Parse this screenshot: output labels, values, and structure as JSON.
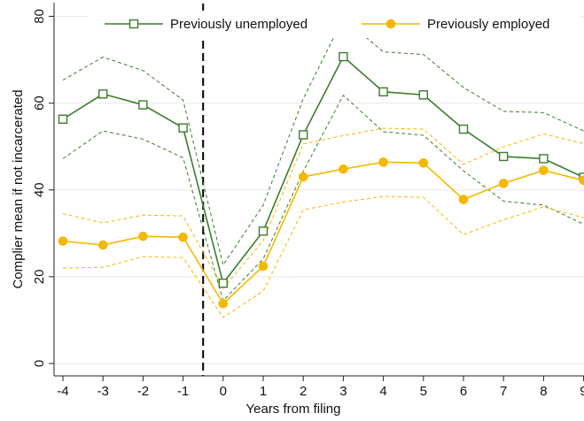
{
  "chart_data": {
    "type": "line",
    "xlabel": "Years from filing",
    "ylabel": "Complier mean if not incarcerated",
    "x_ticks": [
      "-4",
      "-3",
      "-2",
      "-1",
      "0",
      "1",
      "2",
      "3",
      "4",
      "5",
      "6",
      "7",
      "8",
      "9"
    ],
    "y_ticks": [
      "0",
      "20",
      "40",
      "60",
      "80"
    ],
    "xlim": [
      -4.25,
      9
    ],
    "ylim": [
      -1.5,
      82
    ],
    "grid": "horizontal",
    "legend_position": "top",
    "reference_line_x": -0.5,
    "x": [
      -4,
      -3,
      -2,
      -1,
      0,
      1,
      2,
      3,
      4,
      5,
      6,
      7,
      8,
      9
    ],
    "series": [
      {
        "name": "Previously unemployed",
        "color": "#3a7d2c",
        "marker": "hollow-square",
        "values": [
          56.3,
          62.1,
          59.6,
          54.3,
          18.5,
          30.5,
          52.7,
          70.7,
          62.6,
          61.9,
          54.0,
          47.7,
          47.2,
          42.9
        ],
        "ci_upper": [
          65.3,
          70.6,
          67.5,
          60.7,
          22.7,
          36.5,
          61.0,
          79.6,
          71.8,
          71.2,
          63.6,
          58.1,
          57.8,
          53.6
        ],
        "ci_lower": [
          47.2,
          53.6,
          51.7,
          47.4,
          14.5,
          24.1,
          44.3,
          61.8,
          53.4,
          52.6,
          44.4,
          37.4,
          36.5,
          32.1
        ]
      },
      {
        "name": "Previously employed",
        "color": "#f4b800",
        "marker": "filled-circle",
        "values": [
          28.2,
          27.3,
          29.3,
          29.1,
          13.8,
          22.4,
          43.0,
          44.8,
          46.4,
          46.2,
          37.8,
          41.5,
          44.5,
          42.2
        ],
        "ci_upper": [
          34.5,
          32.4,
          34.2,
          34.0,
          17.3,
          28.3,
          50.6,
          52.5,
          54.2,
          54.0,
          45.9,
          49.9,
          52.9,
          50.7
        ],
        "ci_lower": [
          22.0,
          22.2,
          24.6,
          24.4,
          10.6,
          16.7,
          35.4,
          37.2,
          38.5,
          38.3,
          29.7,
          33.1,
          36.1,
          33.6
        ]
      }
    ]
  }
}
